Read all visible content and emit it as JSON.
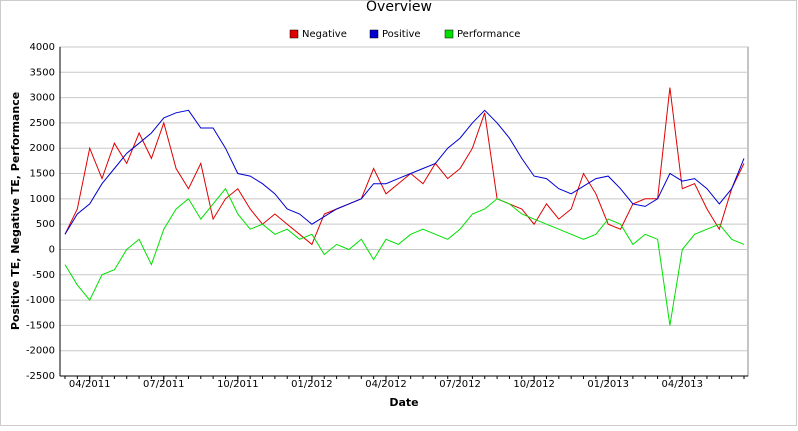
{
  "chart_data": {
    "type": "line",
    "title": "Overview",
    "x_label": "Date",
    "y_label": "Positive TE, Negative TE, Performance",
    "categories": [
      null,
      null,
      "04/2011",
      null,
      null,
      null,
      null,
      null,
      "07/2011",
      null,
      null,
      null,
      null,
      null,
      "10/2011",
      null,
      null,
      null,
      null,
      null,
      "01/2012",
      null,
      null,
      null,
      null,
      null,
      "04/2012",
      null,
      null,
      null,
      null,
      null,
      "07/2012",
      null,
      null,
      null,
      null,
      null,
      "10/2012",
      null,
      null,
      null,
      null,
      null,
      "01/2013",
      null,
      null,
      null,
      null,
      null,
      "04/2013",
      null,
      null,
      null,
      null,
      null
    ],
    "series": [
      {
        "name": "Negative",
        "color": "#e00000",
        "values": [
          300,
          800,
          2000,
          1400,
          2100,
          1700,
          2300,
          1800,
          2500,
          1600,
          1200,
          1700,
          600,
          1000,
          1200,
          800,
          500,
          700,
          500,
          300,
          100,
          700,
          800,
          900,
          1000,
          1600,
          1100,
          1300,
          1500,
          1300,
          1700,
          1400,
          1600,
          2000,
          2700,
          1000,
          900,
          800,
          500,
          900,
          600,
          800,
          1500,
          1100,
          500,
          400,
          900,
          1000,
          1000,
          3200,
          1200,
          1300,
          800,
          400,
          1200,
          1700
        ]
      },
      {
        "name": "Positive",
        "color": "#0000d0",
        "values": [
          300,
          700,
          900,
          1300,
          1600,
          1900,
          2100,
          2300,
          2600,
          2700,
          2750,
          2400,
          2400,
          2000,
          1500,
          1450,
          1300,
          1100,
          800,
          700,
          500,
          650,
          800,
          900,
          1000,
          1300,
          1300,
          1400,
          1500,
          1600,
          1700,
          2000,
          2200,
          2500,
          2750,
          2500,
          2200,
          1800,
          1450,
          1400,
          1200,
          1100,
          1250,
          1400,
          1450,
          1200,
          900,
          850,
          1000,
          1500,
          1350,
          1400,
          1200,
          900,
          1200,
          1800
        ]
      },
      {
        "name": "Performance",
        "color": "#00e000",
        "values": [
          -300,
          -700,
          -1000,
          -500,
          -400,
          0,
          200,
          -300,
          400,
          800,
          1000,
          600,
          900,
          1200,
          700,
          400,
          500,
          300,
          400,
          200,
          300,
          -100,
          100,
          0,
          200,
          -200,
          200,
          100,
          300,
          400,
          300,
          200,
          400,
          700,
          800,
          1000,
          900,
          700,
          600,
          500,
          400,
          300,
          200,
          300,
          600,
          500,
          100,
          300,
          200,
          -1500,
          0,
          300,
          400,
          500,
          200,
          100
        ]
      }
    ],
    "ylim": [
      -2500,
      4000
    ],
    "yticks": [
      -2500,
      -2000,
      -1500,
      -1000,
      -500,
      0,
      500,
      1000,
      1500,
      2000,
      2500,
      3000,
      3500,
      4000
    ],
    "grid": true,
    "legend": "top"
  }
}
